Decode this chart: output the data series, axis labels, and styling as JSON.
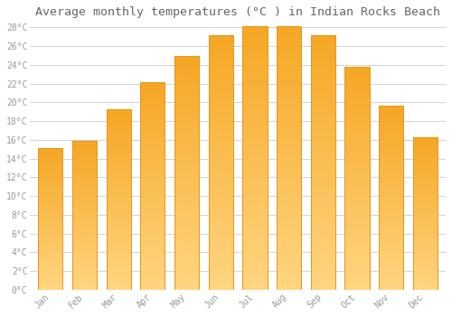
{
  "title": "Average monthly temperatures (°C ) in Indian Rocks Beach",
  "months": [
    "Jan",
    "Feb",
    "Mar",
    "Apr",
    "May",
    "Jun",
    "Jul",
    "Aug",
    "Sep",
    "Oct",
    "Nov",
    "Dec"
  ],
  "values": [
    15.1,
    15.9,
    19.3,
    22.2,
    25.0,
    27.2,
    28.1,
    28.1,
    27.2,
    23.8,
    19.7,
    16.3
  ],
  "bar_color_top": "#F5A623",
  "bar_color_bottom": "#FFD580",
  "bar_edge_color": "#E8951A",
  "background_color": "#FFFFFF",
  "grid_color": "#CCCCCC",
  "title_fontsize": 9.5,
  "tick_label_color": "#999999",
  "ylim": [
    0,
    28.5
  ],
  "yticks": [
    0,
    2,
    4,
    6,
    8,
    10,
    12,
    14,
    16,
    18,
    20,
    22,
    24,
    26,
    28
  ],
  "font_family": "monospace"
}
